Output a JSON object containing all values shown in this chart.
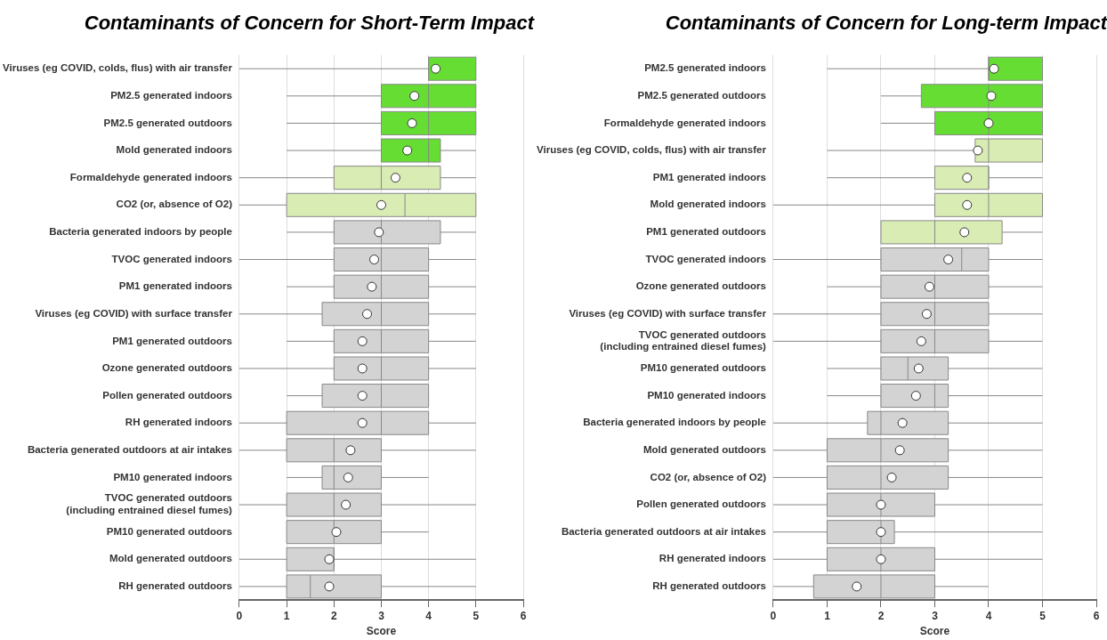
{
  "chart_data": [
    {
      "type": "box",
      "title": "Contaminants of Concern for Short-Term Impact",
      "xlabel": "Score",
      "orientation": "horizontal",
      "grid": "x",
      "categories": [
        "Viruses (eg COVID, colds, flus) with air transfer",
        "PM2.5 generated indoors",
        "PM2.5 generated outdoors",
        "Mold generated indoors",
        "Formaldehyde generated indoors",
        "CO2 (or, absence of O2)",
        "Bacteria generated indoors by people",
        "TVOC generated indoors",
        "PM1 generated indoors",
        "Viruses (eg COVID) with surface transfer",
        "PM1 generated outdoors",
        "Ozone generated outdoors",
        "Pollen generated outdoors",
        "RH generated indoors",
        "Bacteria generated outdoors at air intakes",
        "PM10 generated indoors",
        "TVOC generated outdoors\n(including entrained diesel fumes)",
        "PM10 generated outdoors",
        "Mold generated outdoors",
        "RH generated outdoors"
      ],
      "colors": [
        "#66dd33",
        "#66dd33",
        "#66dd33",
        "#66dd33",
        "#d9ecb3",
        "#d9ecb3",
        "#d3d3d3",
        "#d3d3d3",
        "#d3d3d3",
        "#d3d3d3",
        "#d3d3d3",
        "#d3d3d3",
        "#d3d3d3",
        "#d3d3d3",
        "#d3d3d3",
        "#d3d3d3",
        "#d3d3d3",
        "#d3d3d3",
        "#d3d3d3",
        "#d3d3d3"
      ],
      "boxes": [
        {
          "low": 0,
          "q1": 4,
          "median": 4,
          "q3": 5,
          "high": 5,
          "mean": 4.15
        },
        {
          "low": 1,
          "q1": 3,
          "median": 4,
          "q3": 5,
          "high": 5,
          "mean": 3.7
        },
        {
          "low": 1,
          "q1": 3,
          "median": 4,
          "q3": 5,
          "high": 5,
          "mean": 3.65
        },
        {
          "low": 1,
          "q1": 3,
          "median": 4,
          "q3": 4.25,
          "high": 5,
          "mean": 3.55
        },
        {
          "low": 0,
          "q1": 2,
          "median": 3,
          "q3": 4.25,
          "high": 5,
          "mean": 3.3
        },
        {
          "low": 0,
          "q1": 1,
          "median": 3.5,
          "q3": 5,
          "high": 5,
          "mean": 3.0
        },
        {
          "low": 1,
          "q1": 2,
          "median": 3,
          "q3": 4.25,
          "high": 5,
          "mean": 2.95
        },
        {
          "low": 0,
          "q1": 2,
          "median": 3,
          "q3": 4,
          "high": 5,
          "mean": 2.85
        },
        {
          "low": 1,
          "q1": 2,
          "median": 3,
          "q3": 4,
          "high": 5,
          "mean": 2.8
        },
        {
          "low": 0,
          "q1": 1.75,
          "median": 3,
          "q3": 4,
          "high": 5,
          "mean": 2.7
        },
        {
          "low": 1,
          "q1": 2,
          "median": 3,
          "q3": 4,
          "high": 5,
          "mean": 2.6
        },
        {
          "low": 0,
          "q1": 2,
          "median": 3,
          "q3": 4,
          "high": 5,
          "mean": 2.6
        },
        {
          "low": 1,
          "q1": 1.75,
          "median": 3,
          "q3": 4,
          "high": 4,
          "mean": 2.6
        },
        {
          "low": 0,
          "q1": 1,
          "median": 3,
          "q3": 4,
          "high": 5,
          "mean": 2.6
        },
        {
          "low": 0,
          "q1": 1,
          "median": 2,
          "q3": 3,
          "high": 5,
          "mean": 2.35
        },
        {
          "low": 1,
          "q1": 1.75,
          "median": 2,
          "q3": 3,
          "high": 4,
          "mean": 2.3
        },
        {
          "low": 0,
          "q1": 1,
          "median": 2,
          "q3": 3,
          "high": 5,
          "mean": 2.25
        },
        {
          "low": 1,
          "q1": 1,
          "median": 2,
          "q3": 3,
          "high": 4,
          "mean": 2.05
        },
        {
          "low": 0,
          "q1": 1,
          "median": 2,
          "q3": 2,
          "high": 5,
          "mean": 1.9
        },
        {
          "low": 0,
          "q1": 1,
          "median": 1.5,
          "q3": 3,
          "high": 5,
          "mean": 1.9
        }
      ],
      "xlim": [
        0,
        6
      ],
      "xticks": [
        0,
        1,
        2,
        3,
        4,
        5,
        6
      ]
    },
    {
      "type": "box",
      "title": "Contaminants of Concern for Long-term Impact",
      "xlabel": "Score",
      "orientation": "horizontal",
      "grid": "x",
      "categories": [
        "PM2.5 generated indoors",
        "PM2.5 generated outdoors",
        "Formaldehyde generated indoors",
        "Viruses (eg COVID, colds, flus) with air transfer",
        "PM1 generated indoors",
        "Mold generated indoors",
        "PM1 generated outdoors",
        "TVOC generated indoors",
        "Ozone generated outdoors",
        "Viruses (eg COVID) with surface transfer",
        "TVOC generated outdoors\n(including entrained diesel fumes)",
        "PM10 generated outdoors",
        "PM10 generated indoors",
        "Bacteria generated indoors by people",
        "Mold generated outdoors",
        "CO2 (or, absence of O2)",
        "Pollen generated outdoors",
        "Bacteria generated outdoors at air intakes",
        "RH generated indoors",
        "RH generated outdoors"
      ],
      "colors": [
        "#66dd33",
        "#66dd33",
        "#66dd33",
        "#d9ecb3",
        "#d9ecb3",
        "#d9ecb3",
        "#d9ecb3",
        "#d3d3d3",
        "#d3d3d3",
        "#d3d3d3",
        "#d3d3d3",
        "#d3d3d3",
        "#d3d3d3",
        "#d3d3d3",
        "#d3d3d3",
        "#d3d3d3",
        "#d3d3d3",
        "#d3d3d3",
        "#d3d3d3",
        "#d3d3d3"
      ],
      "boxes": [
        {
          "low": 1,
          "q1": 4,
          "median": 4,
          "q3": 5,
          "high": 5,
          "mean": 4.1
        },
        {
          "low": 2,
          "q1": 2.75,
          "median": 4,
          "q3": 5,
          "high": 5,
          "mean": 4.05
        },
        {
          "low": 2,
          "q1": 3,
          "median": 4,
          "q3": 5,
          "high": 5,
          "mean": 4.0
        },
        {
          "low": 1,
          "q1": 3.75,
          "median": 4,
          "q3": 5,
          "high": 5,
          "mean": 3.8
        },
        {
          "low": 1,
          "q1": 3,
          "median": 4,
          "q3": 4,
          "high": 5,
          "mean": 3.6
        },
        {
          "low": 0,
          "q1": 3,
          "median": 4,
          "q3": 5,
          "high": 5,
          "mean": 3.6
        },
        {
          "low": 2,
          "q1": 2,
          "median": 3,
          "q3": 4.25,
          "high": 5,
          "mean": 3.55
        },
        {
          "low": 0,
          "q1": 2,
          "median": 3.5,
          "q3": 4,
          "high": 5,
          "mean": 3.25
        },
        {
          "low": 1,
          "q1": 2,
          "median": 3,
          "q3": 4,
          "high": 5,
          "mean": 2.9
        },
        {
          "low": 0,
          "q1": 2,
          "median": 3,
          "q3": 4,
          "high": 5,
          "mean": 2.85
        },
        {
          "low": 0,
          "q1": 2,
          "median": 3,
          "q3": 4,
          "high": 5,
          "mean": 2.75
        },
        {
          "low": 1,
          "q1": 2,
          "median": 2.5,
          "q3": 3.25,
          "high": 5,
          "mean": 2.7
        },
        {
          "low": 1,
          "q1": 2,
          "median": 3,
          "q3": 3.25,
          "high": 5,
          "mean": 2.65
        },
        {
          "low": 0,
          "q1": 1.75,
          "median": 2,
          "q3": 3.25,
          "high": 5,
          "mean": 2.4
        },
        {
          "low": 0,
          "q1": 1,
          "median": 2,
          "q3": 3.25,
          "high": 5,
          "mean": 2.35
        },
        {
          "low": 0,
          "q1": 1,
          "median": 2,
          "q3": 3.25,
          "high": 5,
          "mean": 2.2
        },
        {
          "low": 0,
          "q1": 1,
          "median": 2,
          "q3": 3,
          "high": 5,
          "mean": 2.0
        },
        {
          "low": 0,
          "q1": 1,
          "median": 2,
          "q3": 2.25,
          "high": 5,
          "mean": 2.0
        },
        {
          "low": 0,
          "q1": 1,
          "median": 2,
          "q3": 3,
          "high": 5,
          "mean": 2.0
        },
        {
          "low": 0,
          "q1": 0.75,
          "median": 2,
          "q3": 3,
          "high": 4,
          "mean": 1.55
        }
      ],
      "xlim": [
        0,
        6
      ],
      "xticks": [
        0,
        1,
        2,
        3,
        4,
        5,
        6
      ]
    }
  ]
}
